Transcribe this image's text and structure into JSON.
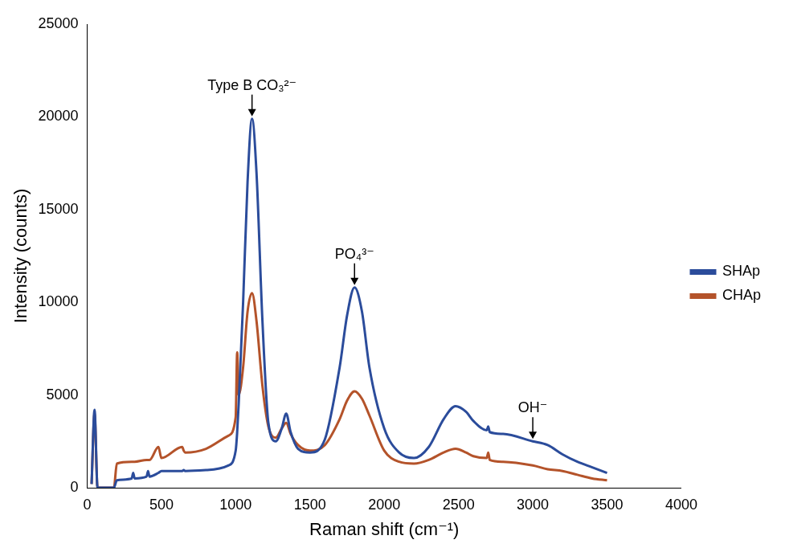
{
  "chart_data": {
    "type": "line",
    "x_label": "Raman shift (cm⁻¹)",
    "y_label": "Intensity (counts)",
    "x": [
      30,
      50,
      70,
      180,
      200,
      300,
      310,
      320,
      400,
      410,
      420,
      480,
      500,
      640,
      650,
      660,
      800,
      950,
      1000,
      1010,
      1020,
      1050,
      1080,
      1110,
      1140,
      1180,
      1220,
      1270,
      1310,
      1340,
      1370,
      1420,
      1500,
      1600,
      1700,
      1750,
      1800,
      1850,
      1900,
      2000,
      2100,
      2200,
      2300,
      2400,
      2480,
      2550,
      2600,
      2690,
      2700,
      2710,
      2800,
      3000,
      3100,
      3200,
      3300,
      3400,
      3500
    ],
    "series": [
      {
        "name": "SHAp",
        "color": "#2b4c9b",
        "values": [
          200,
          4200,
          0,
          0,
          400,
          500,
          800,
          500,
          600,
          900,
          600,
          800,
          900,
          900,
          950,
          900,
          950,
          1200,
          2000,
          3000,
          4500,
          10000,
          16500,
          19900,
          17000,
          9000,
          3500,
          2500,
          3200,
          4000,
          3000,
          2100,
          1900,
          2600,
          6500,
          9300,
          10800,
          9500,
          6500,
          3200,
          1900,
          1600,
          2200,
          3700,
          4400,
          4100,
          3600,
          3100,
          3300,
          3000,
          2900,
          2500,
          2300,
          1800,
          1400,
          1100,
          800
        ]
      },
      {
        "name": "CHAp",
        "color": "#b4532a",
        "values": [
          200,
          4000,
          0,
          0,
          1300,
          1400,
          1400,
          1400,
          1500,
          1500,
          1500,
          2200,
          1600,
          2200,
          2000,
          1900,
          2100,
          2800,
          3800,
          7300,
          5000,
          6500,
          9500,
          10500,
          9000,
          5500,
          3300,
          2700,
          3200,
          3500,
          2900,
          2300,
          2000,
          2300,
          3700,
          4700,
          5200,
          4800,
          3900,
          2000,
          1400,
          1300,
          1500,
          1900,
          2100,
          1900,
          1700,
          1600,
          1900,
          1500,
          1400,
          1200,
          1000,
          900,
          700,
          500,
          400
        ]
      }
    ],
    "xlim": [
      0,
      4000
    ],
    "xticks": [
      0,
      500,
      1000,
      1500,
      2000,
      2500,
      3000,
      3500,
      4000
    ],
    "ylim": [
      0,
      25000
    ],
    "yticks": [
      0,
      5000,
      10000,
      15000,
      20000,
      25000
    ],
    "grid": false,
    "legend": "right",
    "annotations": [
      {
        "text": "Type B CO₃²⁻",
        "x": 1110,
        "y": 19900
      },
      {
        "text": "PO₄³⁻",
        "x": 1800,
        "y": 10800
      },
      {
        "text": "OH⁻",
        "x": 3000,
        "y": 2500
      }
    ]
  }
}
